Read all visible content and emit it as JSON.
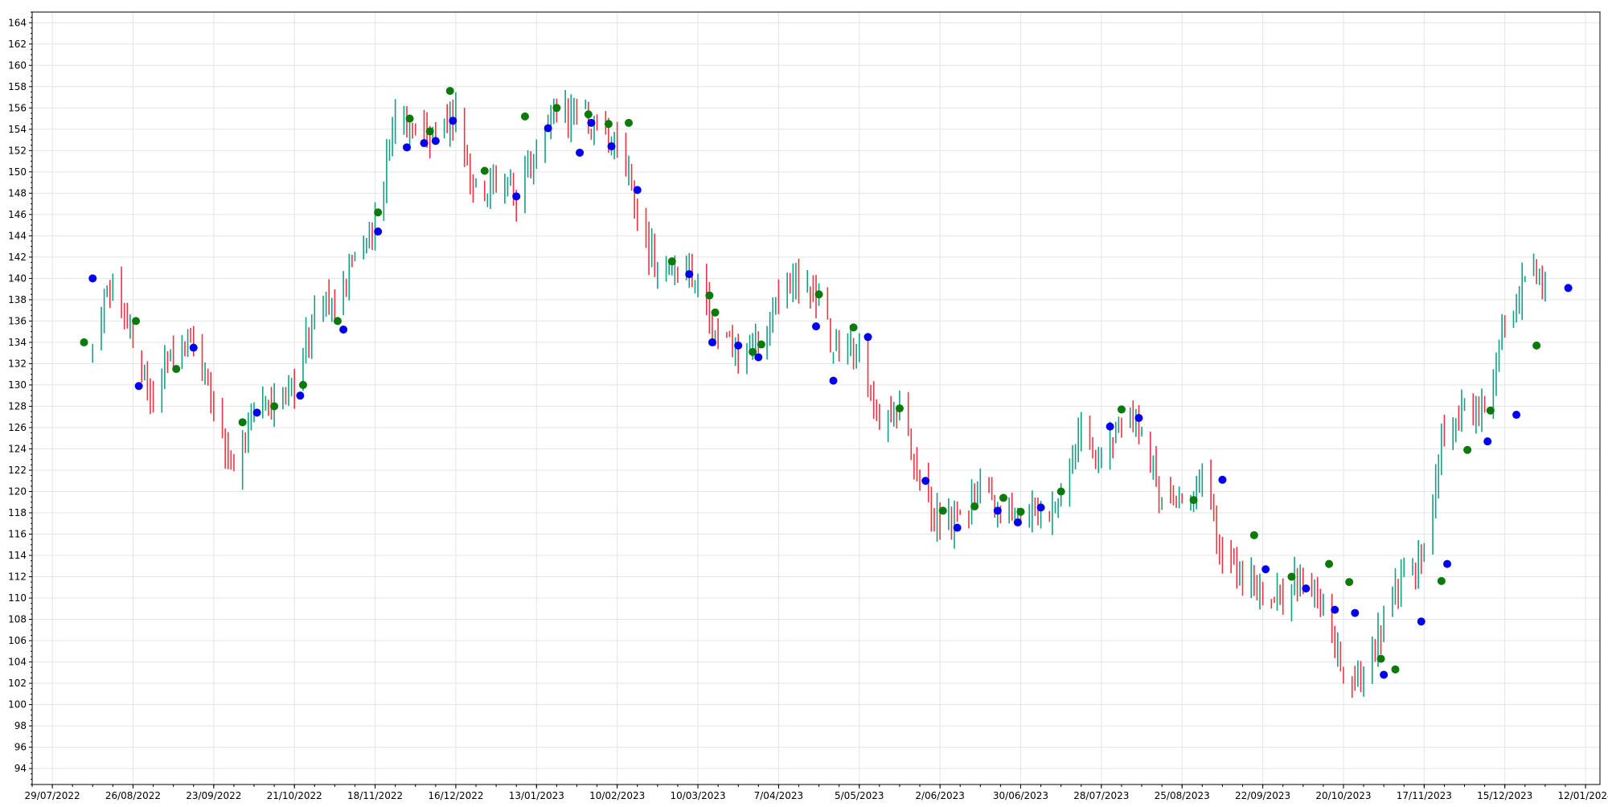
{
  "chart_data": {
    "type": "ohlc",
    "ylim": [
      92.5,
      165
    ],
    "xlim": [
      "2022-07-22",
      "2024-01-17"
    ],
    "grid": true,
    "legend": "none",
    "y_ticks": [
      94,
      96,
      98,
      100,
      102,
      104,
      106,
      108,
      110,
      112,
      114,
      116,
      118,
      120,
      122,
      124,
      126,
      128,
      130,
      132,
      134,
      136,
      138,
      140,
      142,
      144,
      146,
      148,
      150,
      152,
      154,
      156,
      158,
      160,
      162,
      164
    ],
    "x_ticks": [
      {
        "date": "2022-07-29",
        "label": "29/07/2022"
      },
      {
        "date": "2022-08-26",
        "label": "26/08/2022"
      },
      {
        "date": "2022-09-23",
        "label": "23/09/2022"
      },
      {
        "date": "2022-10-21",
        "label": "21/10/2022"
      },
      {
        "date": "2022-11-18",
        "label": "18/11/2022"
      },
      {
        "date": "2022-12-16",
        "label": "16/12/2022"
      },
      {
        "date": "2023-01-13",
        "label": "13/01/2023"
      },
      {
        "date": "2023-02-10",
        "label": "10/02/2023"
      },
      {
        "date": "2023-03-10",
        "label": "10/03/2023"
      },
      {
        "date": "2023-04-07",
        "label": "7/04/2023"
      },
      {
        "date": "2023-05-05",
        "label": "5/05/2023"
      },
      {
        "date": "2023-06-02",
        "label": "2/06/2023"
      },
      {
        "date": "2023-06-30",
        "label": "30/06/2023"
      },
      {
        "date": "2023-07-28",
        "label": "28/07/2023"
      },
      {
        "date": "2023-08-25",
        "label": "25/08/2023"
      },
      {
        "date": "2023-09-22",
        "label": "22/09/2023"
      },
      {
        "date": "2023-10-20",
        "label": "20/10/2023"
      },
      {
        "date": "2023-11-17",
        "label": "17/11/2023"
      },
      {
        "date": "2023-12-15",
        "label": "15/12/2023"
      },
      {
        "date": "2024-01-12",
        "label": "12/01/2024"
      }
    ],
    "colors": {
      "up": "#14a085",
      "down": "#ee3344",
      "buy_marker": "#0a7a0a",
      "sell_marker": "#0000ee",
      "grid": "#e4e4e4"
    },
    "price_path": [
      [
        "2022-08-12",
        133.0
      ],
      [
        "2022-08-19",
        140.0
      ],
      [
        "2022-08-26",
        134.0
      ],
      [
        "2022-09-02",
        128.5
      ],
      [
        "2022-09-09",
        133.0
      ],
      [
        "2022-09-16",
        134.5
      ],
      [
        "2022-09-23",
        127.0
      ],
      [
        "2022-09-30",
        122.0
      ],
      [
        "2022-10-07",
        127.0
      ],
      [
        "2022-10-14",
        128.0
      ],
      [
        "2022-10-21",
        130.0
      ],
      [
        "2022-10-28",
        137.0
      ],
      [
        "2022-11-04",
        137.0
      ],
      [
        "2022-11-11",
        142.0
      ],
      [
        "2022-11-18",
        145.0
      ],
      [
        "2022-11-25",
        155.0
      ],
      [
        "2022-12-02",
        153.0
      ],
      [
        "2022-12-09",
        154.0
      ],
      [
        "2022-12-16",
        155.0
      ],
      [
        "2022-12-23",
        148.0
      ],
      [
        "2022-12-30",
        149.0
      ],
      [
        "2023-01-06",
        148.0
      ],
      [
        "2023-01-13",
        153.0
      ],
      [
        "2023-01-20",
        155.0
      ],
      [
        "2023-01-27",
        156.0
      ],
      [
        "2023-02-03",
        154.0
      ],
      [
        "2023-02-10",
        153.5
      ],
      [
        "2023-02-17",
        146.0
      ],
      [
        "2023-02-24",
        141.0
      ],
      [
        "2023-03-03",
        141.0
      ],
      [
        "2023-03-10",
        140.0
      ],
      [
        "2023-03-17",
        134.0
      ],
      [
        "2023-03-24",
        133.0
      ],
      [
        "2023-03-31",
        134.0
      ],
      [
        "2023-04-07",
        138.0
      ],
      [
        "2023-04-14",
        140.0
      ],
      [
        "2023-04-21",
        137.0
      ],
      [
        "2023-04-28",
        133.0
      ],
      [
        "2023-05-05",
        134.0
      ],
      [
        "2023-05-12",
        127.0
      ],
      [
        "2023-05-19",
        128.0
      ],
      [
        "2023-05-26",
        121.0
      ],
      [
        "2023-06-02",
        117.0
      ],
      [
        "2023-06-09",
        117.0
      ],
      [
        "2023-06-16",
        120.0
      ],
      [
        "2023-06-23",
        118.0
      ],
      [
        "2023-06-30",
        118.0
      ],
      [
        "2023-07-07",
        118.0
      ],
      [
        "2023-07-14",
        120.0
      ],
      [
        "2023-07-21",
        127.0
      ],
      [
        "2023-07-28",
        122.0
      ],
      [
        "2023-08-04",
        127.0
      ],
      [
        "2023-08-11",
        126.0
      ],
      [
        "2023-08-18",
        119.5
      ],
      [
        "2023-08-25",
        120.0
      ],
      [
        "2023-09-01",
        121.5
      ],
      [
        "2023-09-08",
        114.0
      ],
      [
        "2023-09-15",
        112.0
      ],
      [
        "2023-09-22",
        111.0
      ],
      [
        "2023-09-29",
        110.0
      ],
      [
        "2023-10-06",
        112.0
      ],
      [
        "2023-10-13",
        109.0
      ],
      [
        "2023-10-20",
        103.0
      ],
      [
        "2023-10-27",
        103.0
      ],
      [
        "2023-11-03",
        108.0
      ],
      [
        "2023-11-10",
        112.0
      ],
      [
        "2023-11-17",
        114.0
      ],
      [
        "2023-11-24",
        126.0
      ],
      [
        "2023-12-01",
        128.0
      ],
      [
        "2023-12-08",
        128.0
      ],
      [
        "2023-12-15",
        136.0
      ],
      [
        "2023-12-22",
        140.0
      ],
      [
        "2023-12-29",
        139.0
      ]
    ],
    "buy_markers": [
      [
        "2022-08-09",
        134.0
      ],
      [
        "2022-08-27",
        136.0
      ],
      [
        "2022-09-10",
        131.5
      ],
      [
        "2022-10-03",
        126.5
      ],
      [
        "2022-10-14",
        128.0
      ],
      [
        "2022-10-24",
        130.0
      ],
      [
        "2022-11-05",
        136.0
      ],
      [
        "2022-11-19",
        146.2
      ],
      [
        "2022-11-30",
        155.0
      ],
      [
        "2022-12-07",
        153.8
      ],
      [
        "2022-12-14",
        157.6
      ],
      [
        "2022-12-26",
        150.1
      ],
      [
        "2023-01-09",
        155.2
      ],
      [
        "2023-01-20",
        156.0
      ],
      [
        "2023-01-31",
        155.4
      ],
      [
        "2023-02-07",
        154.5
      ],
      [
        "2023-02-14",
        154.6
      ],
      [
        "2023-03-01",
        141.6
      ],
      [
        "2023-03-14",
        138.4
      ],
      [
        "2023-03-16",
        136.8
      ],
      [
        "2023-03-29",
        133.1
      ],
      [
        "2023-04-01",
        133.8
      ],
      [
        "2023-04-21",
        138.5
      ],
      [
        "2023-05-03",
        135.4
      ],
      [
        "2023-05-19",
        127.8
      ],
      [
        "2023-06-03",
        118.2
      ],
      [
        "2023-06-14",
        118.6
      ],
      [
        "2023-06-24",
        119.4
      ],
      [
        "2023-06-30",
        118.1
      ],
      [
        "2023-07-14",
        120.0
      ],
      [
        "2023-08-04",
        127.7
      ],
      [
        "2023-08-29",
        119.2
      ],
      [
        "2023-09-19",
        115.9
      ],
      [
        "2023-10-02",
        112.0
      ],
      [
        "2023-10-15",
        113.2
      ],
      [
        "2023-10-22",
        111.5
      ],
      [
        "2023-11-02",
        104.3
      ],
      [
        "2023-11-07",
        103.3
      ],
      [
        "2023-11-23",
        111.6
      ],
      [
        "2023-12-02",
        123.9
      ],
      [
        "2023-12-10",
        127.6
      ],
      [
        "2023-12-26",
        133.7
      ]
    ],
    "sell_markers": [
      [
        "2022-08-12",
        140.0
      ],
      [
        "2022-08-28",
        129.9
      ],
      [
        "2022-09-16",
        133.5
      ],
      [
        "2022-10-08",
        127.4
      ],
      [
        "2022-10-23",
        129.0
      ],
      [
        "2022-11-07",
        135.2
      ],
      [
        "2022-11-19",
        144.4
      ],
      [
        "2022-11-29",
        152.3
      ],
      [
        "2022-12-05",
        152.7
      ],
      [
        "2022-12-09",
        152.9
      ],
      [
        "2022-12-15",
        154.8
      ],
      [
        "2023-01-06",
        147.7
      ],
      [
        "2023-01-17",
        154.1
      ],
      [
        "2023-01-28",
        151.8
      ],
      [
        "2023-02-01",
        154.6
      ],
      [
        "2023-02-08",
        152.4
      ],
      [
        "2023-02-17",
        148.3
      ],
      [
        "2023-03-07",
        140.4
      ],
      [
        "2023-03-15",
        134.0
      ],
      [
        "2023-03-24",
        133.7
      ],
      [
        "2023-03-31",
        132.6
      ],
      [
        "2023-04-20",
        135.5
      ],
      [
        "2023-04-26",
        130.4
      ],
      [
        "2023-05-08",
        134.5
      ],
      [
        "2023-05-28",
        121.0
      ],
      [
        "2023-06-08",
        116.6
      ],
      [
        "2023-06-22",
        118.2
      ],
      [
        "2023-06-29",
        117.1
      ],
      [
        "2023-07-07",
        118.5
      ],
      [
        "2023-07-31",
        126.1
      ],
      [
        "2023-08-10",
        126.9
      ],
      [
        "2023-09-08",
        121.1
      ],
      [
        "2023-09-23",
        112.7
      ],
      [
        "2023-10-07",
        110.9
      ],
      [
        "2023-10-17",
        108.9
      ],
      [
        "2023-10-24",
        108.6
      ],
      [
        "2023-11-03",
        102.8
      ],
      [
        "2023-11-16",
        107.8
      ],
      [
        "2023-11-25",
        113.2
      ],
      [
        "2023-12-09",
        124.7
      ],
      [
        "2023-12-19",
        127.2
      ],
      [
        "2024-01-06",
        139.1
      ]
    ]
  }
}
